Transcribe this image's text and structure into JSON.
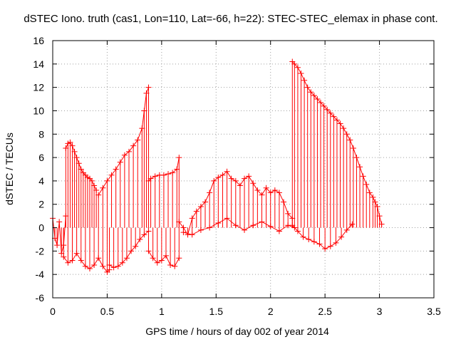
{
  "chart_data": {
    "type": "line",
    "title": "dSTEC Iono. truth (cas1, Lon=110, Lat=-66, h=22): STEC-STEC_elemax in phase cont.",
    "xlabel": "GPS time / hours of day 002 of year 2014",
    "ylabel": "dSTEC  / TECUs",
    "xlim": [
      0,
      3.5
    ],
    "ylim": [
      -6,
      16
    ],
    "x_ticks": [
      "0",
      "0.5",
      "1",
      "1.5",
      "2",
      "2.5",
      "3",
      "3.5"
    ],
    "y_ticks": [
      "-6",
      "-4",
      "-2",
      "0",
      "2",
      "4",
      "6",
      "8",
      "10",
      "12",
      "14",
      "16"
    ],
    "grid": true,
    "marker": "+",
    "impulses_to_zero": true,
    "series_color": "#ff0000",
    "series": [
      {
        "x": [
          0.0,
          0.02,
          0.04,
          0.06,
          0.08,
          0.1,
          0.12
        ],
        "values": [
          0.8,
          -0.9,
          -1.5,
          0.5,
          -2.2,
          -1.5,
          1.0
        ]
      },
      {
        "x": [
          0.12,
          0.14,
          0.16,
          0.18,
          0.2,
          0.22,
          0.24,
          0.26,
          0.28,
          0.3,
          0.32,
          0.34,
          0.36,
          0.38,
          0.4
        ],
        "values": [
          6.8,
          7.2,
          7.3,
          7.0,
          6.5,
          6.0,
          5.5,
          5.0,
          4.7,
          4.5,
          4.3,
          4.2,
          4.0,
          3.6,
          3.2
        ]
      },
      {
        "x": [
          0.1,
          0.14,
          0.18,
          0.22,
          0.26,
          0.3,
          0.34,
          0.38,
          0.42,
          0.46,
          0.5,
          0.52
        ],
        "values": [
          -2.5,
          -3.0,
          -2.8,
          -2.2,
          -2.8,
          -3.3,
          -3.5,
          -3.2,
          -2.6,
          -3.3,
          -3.8,
          -3.6
        ]
      },
      {
        "x": [
          0.42,
          0.46,
          0.5,
          0.54,
          0.58,
          0.62,
          0.66,
          0.7,
          0.74,
          0.78,
          0.82,
          0.84,
          0.86,
          0.88
        ],
        "values": [
          2.8,
          3.4,
          4.0,
          4.5,
          5.0,
          5.6,
          6.2,
          6.5,
          7.0,
          7.5,
          8.5,
          10.0,
          11.5,
          12.0
        ]
      },
      {
        "x": [
          0.52,
          0.56,
          0.6,
          0.64,
          0.68,
          0.72,
          0.76,
          0.8,
          0.84,
          0.88
        ],
        "values": [
          -3.2,
          -3.4,
          -3.3,
          -3.0,
          -2.6,
          -2.0,
          -1.6,
          -1.0,
          -0.6,
          -0.3
        ]
      },
      {
        "x": [
          0.88,
          0.9,
          0.94,
          0.98,
          1.02,
          1.06,
          1.1,
          1.14,
          1.16
        ],
        "values": [
          4.0,
          4.2,
          4.4,
          4.5,
          4.5,
          4.6,
          4.7,
          5.0,
          6.0
        ]
      },
      {
        "x": [
          0.88,
          0.92,
          0.96,
          1.0,
          1.04,
          1.08,
          1.12,
          1.16
        ],
        "values": [
          -2.0,
          -2.6,
          -3.0,
          -2.8,
          -2.4,
          -3.2,
          -3.3,
          -2.6
        ]
      },
      {
        "x": [
          1.16,
          1.2,
          1.24,
          1.28,
          1.32,
          1.36,
          1.4,
          1.44,
          1.48,
          1.52,
          1.56,
          1.6,
          1.64,
          1.68,
          1.72,
          1.76,
          1.8,
          1.84,
          1.88,
          1.92,
          1.96,
          2.0,
          2.04,
          2.08,
          2.12,
          2.16,
          2.2
        ],
        "values": [
          0.5,
          0.0,
          -0.6,
          0.8,
          1.4,
          1.8,
          2.2,
          3.0,
          4.0,
          4.3,
          4.5,
          4.8,
          4.2,
          4.0,
          3.6,
          4.2,
          4.4,
          3.8,
          3.2,
          2.8,
          3.4,
          3.0,
          3.2,
          3.0,
          2.2,
          1.2,
          0.8
        ]
      },
      {
        "x": [
          1.2,
          1.28,
          1.36,
          1.44,
          1.52,
          1.6,
          1.68,
          1.76,
          1.84,
          1.92,
          2.0,
          2.08,
          2.16,
          2.22
        ],
        "values": [
          -0.4,
          -0.6,
          -0.2,
          0.0,
          0.4,
          0.8,
          0.2,
          -0.2,
          0.2,
          0.5,
          0.1,
          -0.3,
          0.2,
          0.0
        ]
      },
      {
        "x": [
          2.2,
          2.22,
          2.25,
          2.28,
          2.31,
          2.34,
          2.37,
          2.4,
          2.43,
          2.46,
          2.49,
          2.52,
          2.55,
          2.58,
          2.61,
          2.64,
          2.67,
          2.7,
          2.73,
          2.76,
          2.79,
          2.82,
          2.85,
          2.88,
          2.91,
          2.94,
          2.96,
          2.98,
          3.0,
          3.02
        ],
        "values": [
          14.2,
          14.0,
          13.7,
          13.2,
          12.6,
          12.0,
          11.6,
          11.3,
          11.0,
          10.7,
          10.4,
          10.1,
          9.8,
          9.5,
          9.2,
          8.9,
          8.5,
          8.0,
          7.5,
          6.8,
          6.0,
          5.2,
          4.4,
          3.7,
          3.0,
          2.6,
          2.2,
          1.8,
          1.0,
          0.3
        ]
      },
      {
        "x": [
          2.2,
          2.25,
          2.3,
          2.35,
          2.4,
          2.45,
          2.5,
          2.55,
          2.6,
          2.65,
          2.7,
          2.75
        ],
        "values": [
          0.2,
          -0.3,
          -0.8,
          -1.0,
          -1.2,
          -1.4,
          -1.8,
          -1.6,
          -1.3,
          -0.8,
          -0.2,
          0.3
        ]
      }
    ]
  }
}
